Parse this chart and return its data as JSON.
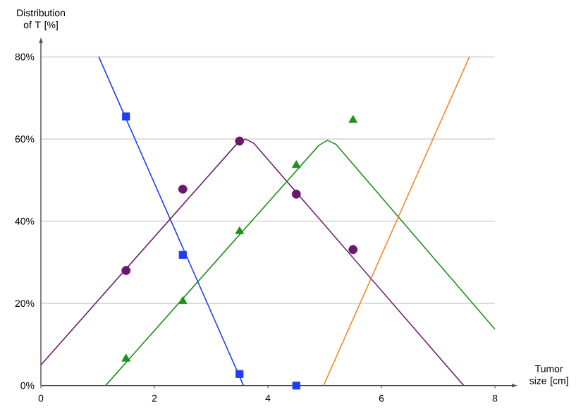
{
  "chart_data": {
    "type": "scatter",
    "xlabel": "Tumor size [cm]",
    "ylabel": "Distribution of T [%]",
    "xlim": [
      0,
      8
    ],
    "ylim": [
      0,
      80
    ],
    "xticks": [
      0,
      2,
      4,
      6,
      8
    ],
    "yticks": [
      {
        "value": 0,
        "label": "0%"
      },
      {
        "value": 20,
        "label": "20%"
      },
      {
        "value": 40,
        "label": "40%"
      },
      {
        "value": 60,
        "label": "60%"
      },
      {
        "value": 80,
        "label": "80%"
      }
    ],
    "grid": "y",
    "series": [
      {
        "type": "line",
        "color": "#1f3df5",
        "x": [
          1.02,
          3.57
        ],
        "values": [
          80,
          0
        ]
      },
      {
        "type": "line",
        "color": "#6e1f72",
        "x": [
          0,
          3.45,
          3.6,
          3.75,
          7.45
        ],
        "values": [
          5,
          58.8,
          60,
          59,
          0
        ]
      },
      {
        "type": "line",
        "color": "#1f8f1f",
        "x": [
          1.14,
          4.9,
          5.05,
          5.2,
          8
        ],
        "values": [
          0,
          58.5,
          59.7,
          58.7,
          13.7
        ]
      },
      {
        "type": "line",
        "color": "#f28a2a",
        "x": [
          4.98,
          7.55
        ],
        "values": [
          0,
          80
        ]
      },
      {
        "marker": "square",
        "color": "#1f3df5",
        "x": [
          1.5,
          2.5,
          3.5,
          4.5
        ],
        "values": [
          65.5,
          31.8,
          2.8,
          0
        ]
      },
      {
        "marker": "circle",
        "color": "#6a176e",
        "x": [
          1.5,
          2.5,
          3.5,
          4.5,
          5.5
        ],
        "values": [
          28,
          47.8,
          59.5,
          46.6,
          33.1
        ]
      },
      {
        "marker": "triangle",
        "color": "#1f8f1f",
        "x": [
          1.5,
          2.5,
          3.5,
          4.5,
          5.5
        ],
        "values": [
          6.5,
          20.5,
          37.5,
          53.6,
          64.6
        ]
      }
    ]
  }
}
